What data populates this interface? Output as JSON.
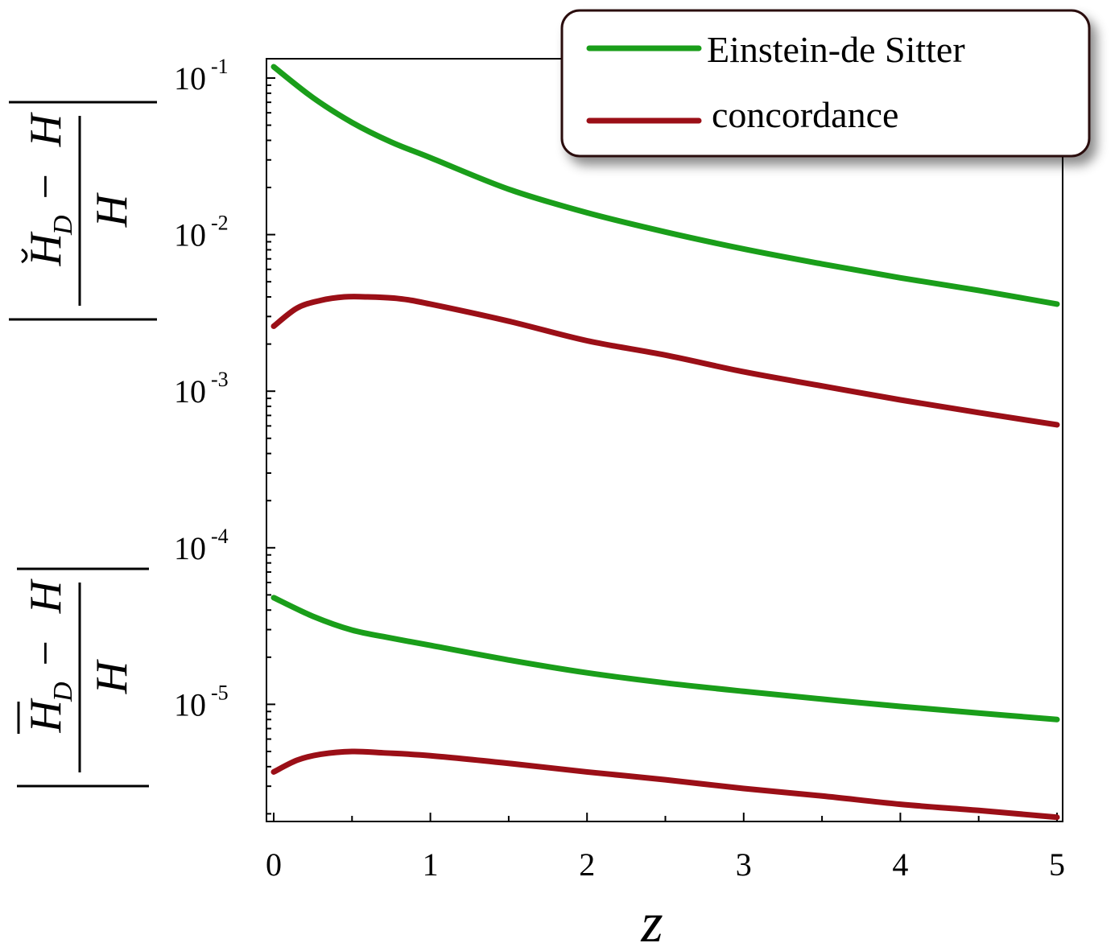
{
  "chart_data": {
    "type": "line",
    "xlabel": "z",
    "ylabel_top": {
      "numerator": "H_D − H",
      "denominator": "H",
      "variant": "breve"
    },
    "ylabel_bottom": {
      "numerator": "H_D − H",
      "denominator": "H",
      "variant": "overline"
    },
    "x_ticks": [
      "0",
      "1",
      "2",
      "3",
      "4",
      "5"
    ],
    "y_ticks": [
      {
        "base": "10",
        "exp": "-1"
      },
      {
        "base": "10",
        "exp": "-2"
      },
      {
        "base": "10",
        "exp": "-3"
      },
      {
        "base": "10",
        "exp": "-4"
      },
      {
        "base": "10",
        "exp": "-5"
      }
    ],
    "xlim": [
      0,
      5
    ],
    "ylim": [
      1.8e-06,
      0.135
    ],
    "y_scale": "log",
    "grid": false,
    "legend_position": "top-right",
    "legend": [
      {
        "label": "Einstein-de Sitter",
        "color": "#1a9e1a"
      },
      {
        "label": "concordance",
        "color": "#9b0f17"
      }
    ],
    "series": [
      {
        "name": "Einstein-de Sitter",
        "group": "top",
        "color": "#1a9e1a",
        "x": [
          0,
          0.25,
          0.5,
          0.75,
          1,
          1.5,
          2,
          2.5,
          3,
          3.5,
          4,
          4.5,
          5
        ],
        "y": [
          0.118,
          0.075,
          0.052,
          0.039,
          0.031,
          0.0195,
          0.0138,
          0.0104,
          0.0081,
          0.0065,
          0.0053,
          0.0044,
          0.0036
        ]
      },
      {
        "name": "concordance",
        "group": "top",
        "color": "#9b0f17",
        "x": [
          0,
          0.15,
          0.3,
          0.45,
          0.6,
          0.8,
          1,
          1.5,
          2,
          2.5,
          3,
          3.5,
          4,
          4.5,
          5
        ],
        "y": [
          0.0026,
          0.0034,
          0.0038,
          0.004,
          0.004,
          0.0039,
          0.0036,
          0.0028,
          0.0021,
          0.0017,
          0.00133,
          0.00108,
          0.00088,
          0.00073,
          0.00061
        ]
      },
      {
        "name": "Einstein-de Sitter",
        "group": "bottom",
        "color": "#1a9e1a",
        "x": [
          0,
          0.25,
          0.5,
          0.75,
          1,
          1.5,
          2,
          2.5,
          3,
          3.5,
          4,
          4.5,
          5
        ],
        "y": [
          4.8e-05,
          3.65e-05,
          2.98e-05,
          2.65e-05,
          2.38e-05,
          1.92e-05,
          1.59e-05,
          1.37e-05,
          1.21e-05,
          1.08e-05,
          9.7e-06,
          8.8e-06,
          8e-06
        ]
      },
      {
        "name": "concordance",
        "group": "bottom",
        "color": "#9b0f17",
        "x": [
          0,
          0.15,
          0.3,
          0.5,
          0.7,
          1,
          1.5,
          2,
          2.5,
          3,
          3.5,
          4,
          4.5,
          5
        ],
        "y": [
          3.7e-06,
          4.4e-06,
          4.8e-06,
          5e-06,
          4.9e-06,
          4.7e-06,
          4.2e-06,
          3.7e-06,
          3.3e-06,
          2.9e-06,
          2.6e-06,
          2.3e-06,
          2.1e-06,
          1.9e-06
        ]
      }
    ]
  }
}
